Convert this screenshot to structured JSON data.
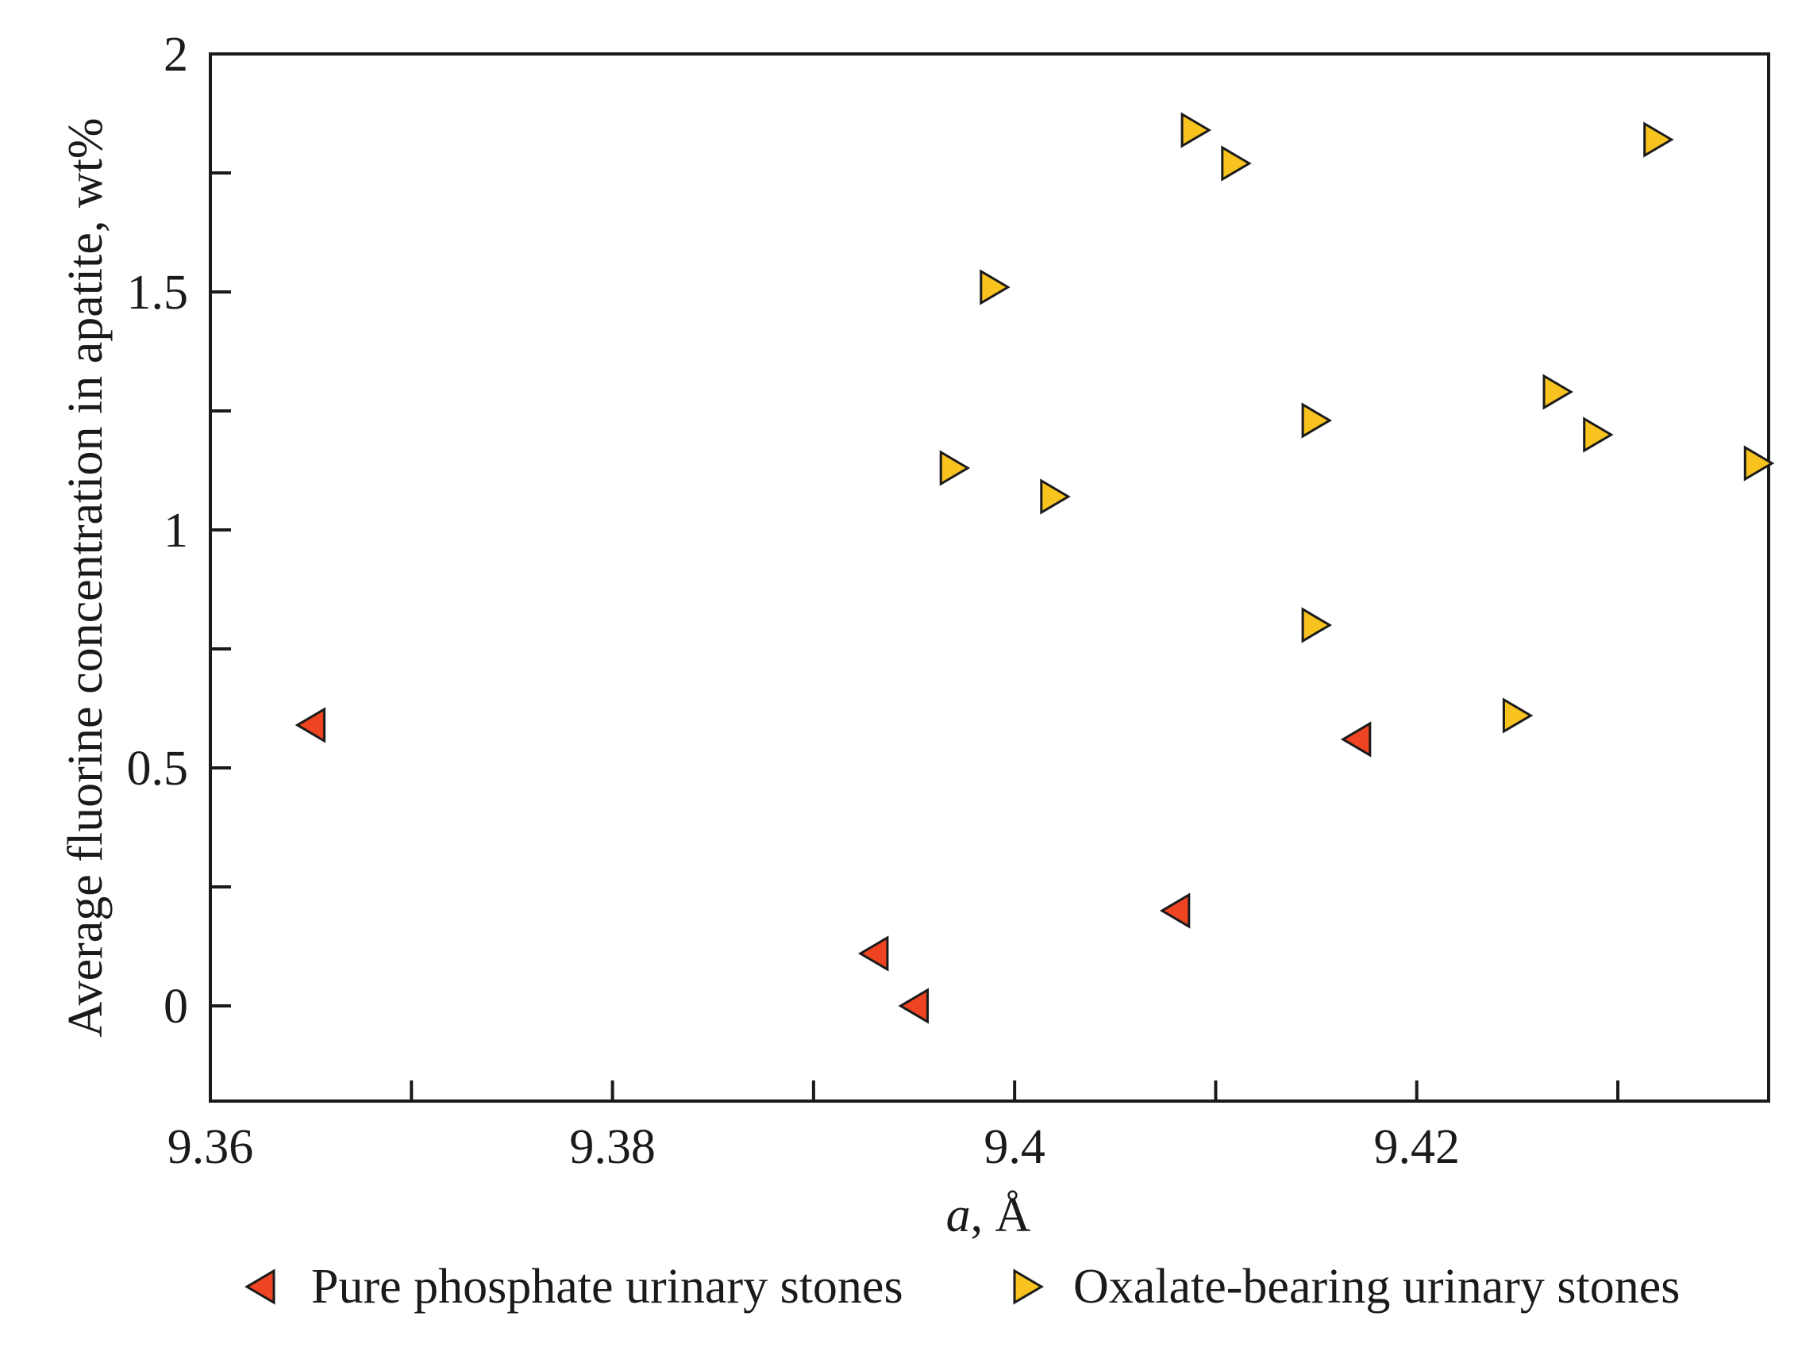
{
  "chart_data": {
    "type": "scatter",
    "title": "",
    "xlabel": {
      "symbol": "a",
      "unit": ", Å"
    },
    "ylabel": "Average fluorine concentration in apatite, wt%",
    "xlim": [
      9.36,
      9.4375
    ],
    "ylim": [
      -0.2,
      2.0
    ],
    "xticks": [
      9.36,
      9.37,
      9.38,
      9.39,
      9.4,
      9.41,
      9.42,
      9.43
    ],
    "xtick_labels": [
      {
        "value": 9.36,
        "label": "9.36"
      },
      {
        "value": 9.38,
        "label": "9.38"
      },
      {
        "value": 9.4,
        "label": "9.4"
      },
      {
        "value": 9.42,
        "label": "9.42"
      }
    ],
    "yticks": [
      0,
      0.25,
      0.5,
      0.75,
      1.0,
      1.25,
      1.5,
      1.75,
      2.0
    ],
    "ytick_labels": [
      {
        "value": 0,
        "label": "0"
      },
      {
        "value": 0.5,
        "label": "0.5"
      },
      {
        "value": 1.0,
        "label": "1"
      },
      {
        "value": 1.5,
        "label": "1.5"
      },
      {
        "value": 2.0,
        "label": "2"
      }
    ],
    "grid": false,
    "legend_position": "bottom",
    "series": [
      {
        "name": "Pure phosphate urinary stones",
        "marker": "triangle-left",
        "color": "#ee4422",
        "points": [
          {
            "x": 9.365,
            "y": 0.59
          },
          {
            "x": 9.393,
            "y": 0.11
          },
          {
            "x": 9.395,
            "y": 0.0
          },
          {
            "x": 9.408,
            "y": 0.2
          },
          {
            "x": 9.417,
            "y": 0.56
          }
        ]
      },
      {
        "name": "Oxalate-bearing urinary stones",
        "marker": "triangle-right",
        "color": "#f8c31f",
        "points": [
          {
            "x": 9.397,
            "y": 1.13
          },
          {
            "x": 9.399,
            "y": 1.51
          },
          {
            "x": 9.402,
            "y": 1.07
          },
          {
            "x": 9.409,
            "y": 1.84
          },
          {
            "x": 9.411,
            "y": 1.77
          },
          {
            "x": 9.415,
            "y": 1.23
          },
          {
            "x": 9.415,
            "y": 0.8
          },
          {
            "x": 9.425,
            "y": 0.61
          },
          {
            "x": 9.427,
            "y": 1.29
          },
          {
            "x": 9.429,
            "y": 1.2
          },
          {
            "x": 9.432,
            "y": 1.82
          },
          {
            "x": 9.437,
            "y": 1.14
          }
        ]
      }
    ]
  }
}
